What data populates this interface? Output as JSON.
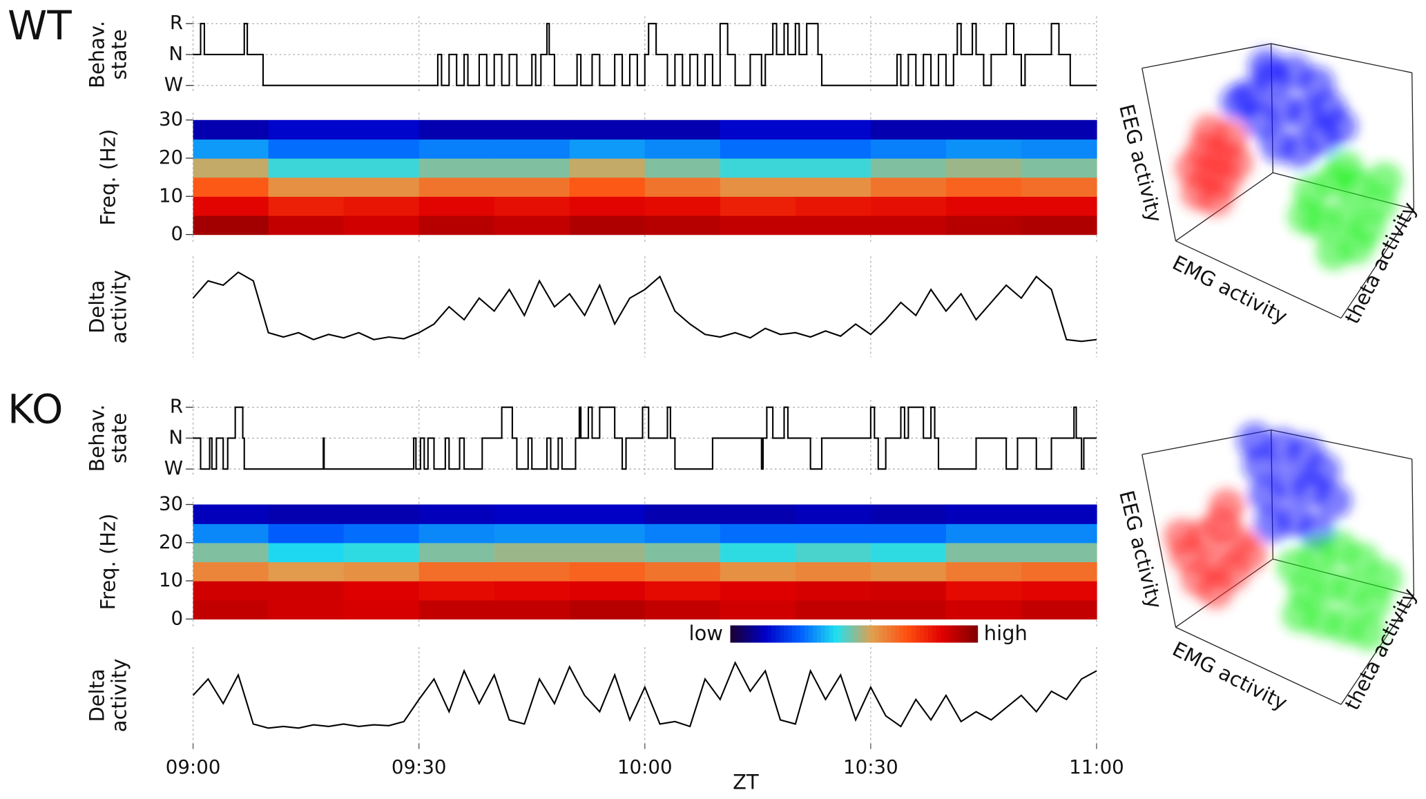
{
  "chart_data": [
    {
      "type": "step",
      "title": "WT",
      "ylabel": [
        "Behav.",
        "state"
      ],
      "ylim": [
        0,
        2
      ],
      "yticks": [
        {
          "value": 2,
          "label": "R"
        },
        {
          "value": 1,
          "label": "N"
        },
        {
          "value": 0,
          "label": "W"
        }
      ],
      "grid": true,
      "xlim": [
        0,
        120
      ],
      "xticks": [
        0,
        30,
        60,
        90,
        120
      ],
      "color": "#000000",
      "x": [
        0,
        1,
        1.5,
        6.8,
        7.2,
        9.3,
        32.5,
        33,
        34,
        35,
        36,
        36.5,
        38,
        39,
        40,
        41,
        42,
        43,
        45,
        45.5,
        46.2,
        47,
        47.3,
        48,
        51,
        51.5,
        53,
        54,
        56,
        57,
        58,
        59,
        60,
        60.5,
        61.5,
        63,
        64,
        65,
        66,
        67,
        68,
        69,
        70,
        71,
        72,
        74,
        75.5,
        76,
        77,
        77.5,
        78.5,
        79,
        80,
        80.5,
        81.5,
        83,
        83.5,
        93.5,
        94,
        95,
        96,
        97,
        98,
        99,
        100,
        101,
        101.5,
        102,
        103.5,
        104,
        105,
        106,
        108,
        109,
        110,
        110.5,
        114,
        115,
        116.5,
        120
      ],
      "values": [
        1,
        2,
        1,
        2,
        1,
        0,
        1,
        0,
        1,
        0,
        1,
        0,
        1,
        0,
        1,
        0,
        1,
        0,
        1,
        0,
        1,
        2,
        1,
        0,
        1,
        0,
        1,
        0,
        1,
        0,
        1,
        0,
        1,
        2,
        1,
        0,
        1,
        0,
        1,
        0,
        1,
        0,
        2,
        1,
        0,
        1,
        0,
        1,
        2,
        1,
        2,
        1,
        2,
        1,
        2,
        1,
        0,
        1,
        0,
        1,
        0,
        1,
        0,
        1,
        0,
        1,
        2,
        1,
        2,
        1,
        0,
        1,
        2,
        1,
        0,
        1,
        2,
        1,
        0,
        0
      ]
    },
    {
      "type": "heatmap",
      "ylabel": [
        "Freq. (Hz)"
      ],
      "ylim": [
        0,
        30
      ],
      "yticks": [
        0,
        10,
        20,
        30
      ],
      "xlim": [
        0,
        120
      ],
      "xticks": [
        0,
        30,
        60,
        90,
        120
      ],
      "x_bins": [
        0,
        10,
        20,
        30,
        40,
        50,
        60,
        70,
        80,
        90,
        100,
        110,
        120
      ],
      "freq_bins": [
        0,
        5,
        10,
        15,
        20,
        25,
        30
      ],
      "colormap": [
        "#1a0030",
        "#0000c8",
        "#0060ff",
        "#20e0f0",
        "#e0a050",
        "#ff5010",
        "#e00000",
        "#800000"
      ],
      "values": [
        [
          0.95,
          0.9,
          0.88,
          0.92,
          0.9,
          0.93,
          0.92,
          0.9,
          0.9,
          0.9,
          0.92,
          0.93
        ],
        [
          0.85,
          0.8,
          0.82,
          0.85,
          0.83,
          0.85,
          0.84,
          0.8,
          0.82,
          0.83,
          0.85,
          0.85
        ],
        [
          0.7,
          0.6,
          0.6,
          0.65,
          0.65,
          0.7,
          0.65,
          0.6,
          0.6,
          0.65,
          0.68,
          0.66
        ],
        [
          0.55,
          0.45,
          0.45,
          0.5,
          0.5,
          0.55,
          0.5,
          0.45,
          0.45,
          0.5,
          0.52,
          0.5
        ],
        [
          0.35,
          0.3,
          0.3,
          0.32,
          0.32,
          0.35,
          0.33,
          0.3,
          0.3,
          0.32,
          0.34,
          0.33
        ],
        [
          0.12,
          0.15,
          0.15,
          0.12,
          0.12,
          0.12,
          0.12,
          0.15,
          0.15,
          0.12,
          0.12,
          0.12
        ]
      ]
    },
    {
      "type": "line",
      "ylabel": [
        "Delta",
        "activity"
      ],
      "ylim": [
        0,
        1
      ],
      "xlim": [
        0,
        120
      ],
      "xticks": [
        0,
        30,
        60,
        90,
        120
      ],
      "color": "#000000",
      "x": [
        0,
        2,
        4,
        6,
        8,
        10,
        12,
        14,
        16,
        18,
        20,
        22,
        24,
        26,
        28,
        30,
        32,
        34,
        36,
        38,
        40,
        42,
        44,
        46,
        48,
        50,
        52,
        54,
        56,
        58,
        60,
        62,
        64,
        66,
        68,
        70,
        72,
        74,
        76,
        78,
        80,
        82,
        84,
        86,
        88,
        90,
        92,
        94,
        96,
        98,
        100,
        102,
        104,
        106,
        108,
        110,
        112,
        114,
        116,
        118,
        120
      ],
      "values": [
        0.6,
        0.8,
        0.75,
        0.9,
        0.8,
        0.2,
        0.15,
        0.2,
        0.12,
        0.18,
        0.14,
        0.2,
        0.12,
        0.15,
        0.13,
        0.2,
        0.3,
        0.5,
        0.35,
        0.6,
        0.45,
        0.7,
        0.4,
        0.8,
        0.5,
        0.65,
        0.4,
        0.75,
        0.3,
        0.6,
        0.7,
        0.85,
        0.45,
        0.3,
        0.18,
        0.15,
        0.2,
        0.14,
        0.25,
        0.18,
        0.2,
        0.15,
        0.22,
        0.16,
        0.3,
        0.18,
        0.35,
        0.55,
        0.4,
        0.7,
        0.45,
        0.65,
        0.35,
        0.55,
        0.75,
        0.6,
        0.85,
        0.7,
        0.12,
        0.1,
        0.12
      ]
    },
    {
      "type": "scatter3d",
      "xlabel": "EMG activity",
      "ylabel": "EEG activity",
      "zlabel": "theta activity",
      "xlim": [
        0,
        100
      ],
      "ylim": [
        0,
        100
      ],
      "series": [
        {
          "color": "#ff3030",
          "x": [
            22,
            26,
            30,
            24,
            33,
            20,
            28,
            31,
            35,
            26
          ],
          "y": [
            48,
            54,
            60,
            62,
            66,
            56,
            46,
            52,
            58,
            68
          ]
        },
        {
          "color": "#1010ff",
          "x": [
            40,
            48,
            56,
            64,
            44,
            52,
            60,
            68,
            50,
            58,
            66,
            46,
            36,
            72
          ],
          "y": [
            80,
            86,
            88,
            84,
            72,
            76,
            74,
            76,
            64,
            62,
            66,
            90,
            78,
            70
          ]
        },
        {
          "color": "#20f020",
          "x": [
            62,
            70,
            78,
            86,
            66,
            74,
            82,
            70,
            78,
            60,
            88,
            74
          ],
          "y": [
            48,
            52,
            50,
            44,
            38,
            40,
            36,
            28,
            30,
            40,
            52,
            56
          ]
        }
      ]
    },
    {
      "type": "step",
      "title": "KO",
      "ylabel": [
        "Behav.",
        "state"
      ],
      "ylim": [
        0,
        2
      ],
      "yticks": [
        {
          "value": 2,
          "label": "R"
        },
        {
          "value": 1,
          "label": "N"
        },
        {
          "value": 0,
          "label": "W"
        }
      ],
      "grid": true,
      "xlim": [
        0,
        120
      ],
      "xticks": [
        0,
        30,
        60,
        90,
        120
      ],
      "color": "#000000",
      "x": [
        0,
        1,
        2.2,
        2.5,
        3.1,
        4,
        4.6,
        5.6,
        6.6,
        6.8,
        17.3,
        17.4,
        29.3,
        29.6,
        30.2,
        30.7,
        31.2,
        32,
        33.5,
        34,
        35.4,
        36,
        38.4,
        41,
        42.4,
        43,
        44.5,
        45,
        47,
        47.5,
        48.5,
        49,
        50.8,
        51.3,
        51.5,
        52.5,
        53,
        54,
        56,
        57,
        57.5,
        59.7,
        60.5,
        63,
        63.4,
        64,
        69,
        75.5,
        75.7,
        76.2,
        77,
        78.5,
        79,
        82,
        83.5,
        90,
        90.5,
        91,
        92,
        94,
        94.5,
        95,
        97,
        98,
        98.5,
        99,
        104,
        108,
        109.5,
        112,
        114,
        117,
        117.3,
        118,
        118.3,
        120
      ],
      "values": [
        1,
        0,
        1,
        0,
        1,
        0,
        1,
        2,
        1,
        0,
        1,
        0,
        1,
        0,
        1,
        0,
        1,
        0,
        1,
        0,
        1,
        0,
        1,
        2,
        1,
        0,
        1,
        0,
        1,
        0,
        1,
        0,
        1,
        2,
        1,
        2,
        1,
        2,
        1,
        0,
        1,
        2,
        1,
        2,
        1,
        0,
        1,
        0,
        1,
        2,
        1,
        2,
        1,
        0,
        1,
        2,
        1,
        0,
        1,
        2,
        1,
        2,
        1,
        2,
        1,
        0,
        1,
        0,
        1,
        0,
        1,
        2,
        1,
        0,
        1,
        1
      ]
    },
    {
      "type": "heatmap",
      "ylabel": [
        "Freq. (Hz)"
      ],
      "ylim": [
        0,
        30
      ],
      "yticks": [
        0,
        10,
        20,
        30
      ],
      "xlim": [
        0,
        120
      ],
      "xticks": [
        0,
        30,
        60,
        90,
        120
      ],
      "x_bins": [
        0,
        10,
        20,
        30,
        40,
        50,
        60,
        70,
        80,
        90,
        100,
        110,
        120
      ],
      "freq_bins": [
        0,
        5,
        10,
        15,
        20,
        25,
        30
      ],
      "colormap": [
        "#1a0030",
        "#0000c8",
        "#0060ff",
        "#20e0f0",
        "#e0a050",
        "#ff5010",
        "#e00000",
        "#800000"
      ],
      "colorbar": {
        "low": "low",
        "high": "high"
      },
      "values": [
        [
          0.9,
          0.88,
          0.87,
          0.9,
          0.9,
          0.92,
          0.9,
          0.88,
          0.9,
          0.9,
          0.88,
          0.9
        ],
        [
          0.88,
          0.88,
          0.86,
          0.84,
          0.85,
          0.86,
          0.84,
          0.86,
          0.87,
          0.88,
          0.84,
          0.85
        ],
        [
          0.62,
          0.58,
          0.6,
          0.66,
          0.66,
          0.68,
          0.65,
          0.6,
          0.62,
          0.6,
          0.64,
          0.66
        ],
        [
          0.5,
          0.42,
          0.44,
          0.5,
          0.52,
          0.52,
          0.5,
          0.44,
          0.46,
          0.44,
          0.5,
          0.5
        ],
        [
          0.33,
          0.28,
          0.3,
          0.33,
          0.34,
          0.34,
          0.32,
          0.3,
          0.3,
          0.3,
          0.33,
          0.33
        ],
        [
          0.13,
          0.12,
          0.12,
          0.13,
          0.14,
          0.14,
          0.12,
          0.12,
          0.13,
          0.12,
          0.13,
          0.13
        ]
      ]
    },
    {
      "type": "line",
      "ylabel": [
        "Delta",
        "activity"
      ],
      "ylim": [
        0,
        1
      ],
      "xlim": [
        0,
        120
      ],
      "xlabel": "ZT",
      "color": "#000000",
      "xticks": [
        {
          "value": 0,
          "label": "09:00"
        },
        {
          "value": 30,
          "label": "09:30"
        },
        {
          "value": 60,
          "label": "10:00"
        },
        {
          "value": 90,
          "label": "10:30"
        },
        {
          "value": 120,
          "label": "11:00"
        }
      ],
      "x": [
        0,
        2,
        4,
        6,
        8,
        10,
        12,
        14,
        16,
        18,
        20,
        22,
        24,
        26,
        28,
        30,
        32,
        34,
        36,
        38,
        40,
        42,
        44,
        46,
        48,
        50,
        52,
        54,
        56,
        58,
        60,
        62,
        64,
        66,
        68,
        70,
        72,
        74,
        76,
        78,
        80,
        82,
        84,
        86,
        88,
        90,
        92,
        94,
        96,
        98,
        100,
        102,
        104,
        106,
        108,
        110,
        112,
        114,
        116,
        118,
        120
      ],
      "values": [
        0.5,
        0.7,
        0.4,
        0.75,
        0.15,
        0.1,
        0.12,
        0.1,
        0.14,
        0.12,
        0.15,
        0.12,
        0.14,
        0.13,
        0.18,
        0.45,
        0.7,
        0.3,
        0.8,
        0.4,
        0.75,
        0.2,
        0.15,
        0.7,
        0.4,
        0.85,
        0.5,
        0.3,
        0.75,
        0.2,
        0.6,
        0.15,
        0.18,
        0.12,
        0.7,
        0.45,
        0.9,
        0.55,
        0.8,
        0.2,
        0.15,
        0.8,
        0.45,
        0.75,
        0.2,
        0.6,
        0.25,
        0.12,
        0.45,
        0.2,
        0.5,
        0.18,
        0.3,
        0.2,
        0.35,
        0.5,
        0.3,
        0.55,
        0.45,
        0.7,
        0.8
      ]
    },
    {
      "type": "scatter3d",
      "xlabel": "EMG activity",
      "ylabel": "EEG activity",
      "zlabel": "theta activity",
      "xlim": [
        0,
        100
      ],
      "ylim": [
        0,
        100
      ],
      "series": [
        {
          "color": "#ff3030",
          "x": [
            18,
            24,
            30,
            36,
            22,
            28,
            34,
            40,
            28,
            32,
            16
          ],
          "y": [
            56,
            62,
            66,
            60,
            48,
            52,
            50,
            56,
            44,
            72,
            62
          ]
        },
        {
          "color": "#1010ff",
          "x": [
            44,
            52,
            60,
            66,
            46,
            54,
            62,
            70,
            48,
            56,
            64,
            42
          ],
          "y": [
            86,
            92,
            90,
            84,
            76,
            80,
            78,
            74,
            66,
            68,
            64,
            94
          ]
        },
        {
          "color": "#20f020",
          "x": [
            56,
            64,
            72,
            80,
            88,
            60,
            68,
            76,
            84,
            66,
            74,
            82,
            58
          ],
          "y": [
            52,
            56,
            58,
            54,
            48,
            44,
            46,
            44,
            40,
            34,
            32,
            30,
            36
          ]
        }
      ]
    }
  ]
}
